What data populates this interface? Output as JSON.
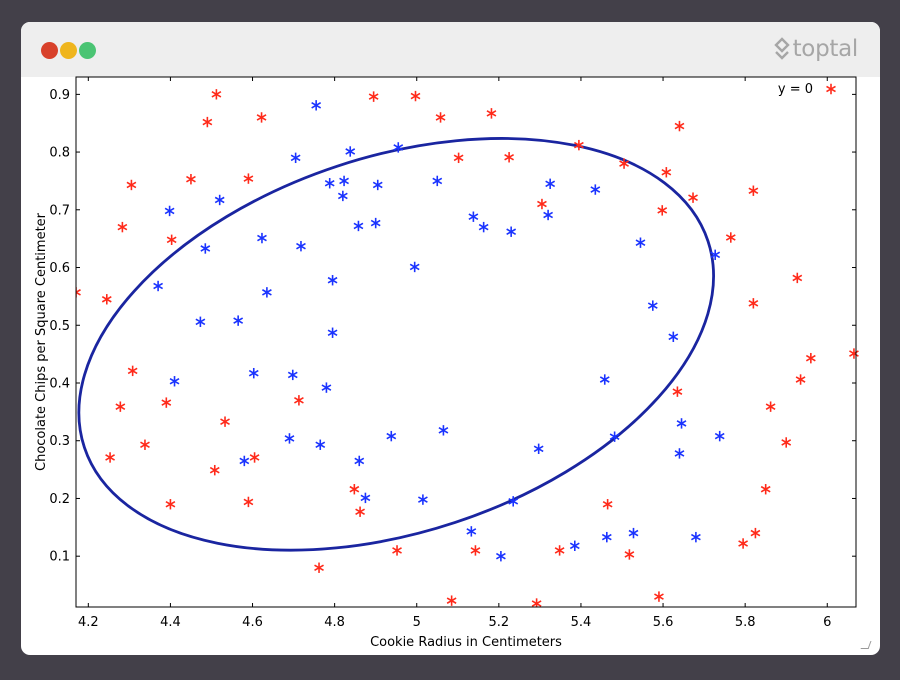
{
  "window": {
    "traffic_lights": [
      "#d8412b",
      "#efb51d",
      "#4ac473"
    ],
    "brand_label": "toptal",
    "brand_icon": "toptal-logo-icon"
  },
  "chart_data": {
    "type": "scatter",
    "title": "",
    "xlabel": "Cookie Radius in Centimeters",
    "ylabel": "Chocolate Chips per Square Centimeter",
    "xlim": [
      4.17,
      6.07
    ],
    "ylim": [
      0.012,
      0.93
    ],
    "xticks": [
      4.2,
      4.4,
      4.6,
      4.8,
      5,
      5.2,
      5.4,
      5.6,
      5.8,
      6
    ],
    "xtick_labels": [
      "4.2",
      "4.4",
      "4.6",
      "4.8",
      "5",
      "5.2",
      "5.4",
      "5.6",
      "5.8",
      "6"
    ],
    "yticks": [
      0.1,
      0.2,
      0.3,
      0.4,
      0.5,
      0.6,
      0.7,
      0.8,
      0.9
    ],
    "ytick_labels": [
      "0.1",
      "0.2",
      "0.3",
      "0.4",
      "0.5",
      "0.6",
      "0.7",
      "0.8",
      "0.9"
    ],
    "grid": false,
    "legend_position": "top-right",
    "marker": "asterisk",
    "legend_entries": [
      {
        "label": "y = 0",
        "color": "#ff2a1a"
      }
    ],
    "series": [
      {
        "name": "y = 0",
        "color": "#ff2a1a",
        "points": [
          [
            4.17,
            0.557
          ],
          [
            4.245,
            0.545
          ],
          [
            4.283,
            0.67
          ],
          [
            4.305,
            0.743
          ],
          [
            4.253,
            0.271
          ],
          [
            4.278,
            0.359
          ],
          [
            4.308,
            0.421
          ],
          [
            4.338,
            0.293
          ],
          [
            4.39,
            0.366
          ],
          [
            4.403,
            0.648
          ],
          [
            4.4,
            0.19
          ],
          [
            4.45,
            0.753
          ],
          [
            4.49,
            0.852
          ],
          [
            4.512,
            0.9
          ],
          [
            4.508,
            0.249
          ],
          [
            4.533,
            0.333
          ],
          [
            4.59,
            0.754
          ],
          [
            4.59,
            0.194
          ],
          [
            4.605,
            0.271
          ],
          [
            4.622,
            0.86
          ],
          [
            4.713,
            0.37
          ],
          [
            4.762,
            0.08
          ],
          [
            4.848,
            0.216
          ],
          [
            4.862,
            0.177
          ],
          [
            4.895,
            0.896
          ],
          [
            4.952,
            0.11
          ],
          [
            4.997,
            0.897
          ],
          [
            5.058,
            0.86
          ],
          [
            5.085,
            0.023
          ],
          [
            5.102,
            0.79
          ],
          [
            5.182,
            0.867
          ],
          [
            5.143,
            0.11
          ],
          [
            5.225,
            0.791
          ],
          [
            5.292,
            0.018
          ],
          [
            5.305,
            0.71
          ],
          [
            5.348,
            0.11
          ],
          [
            5.395,
            0.812
          ],
          [
            5.465,
            0.19
          ],
          [
            5.505,
            0.78
          ],
          [
            5.518,
            0.103
          ],
          [
            5.59,
            0.03
          ],
          [
            5.598,
            0.699
          ],
          [
            5.608,
            0.765
          ],
          [
            5.635,
            0.385
          ],
          [
            5.64,
            0.845
          ],
          [
            5.673,
            0.721
          ],
          [
            5.765,
            0.652
          ],
          [
            5.795,
            0.122
          ],
          [
            5.82,
            0.733
          ],
          [
            5.82,
            0.538
          ],
          [
            5.825,
            0.14
          ],
          [
            5.85,
            0.216
          ],
          [
            5.862,
            0.359
          ],
          [
            5.9,
            0.297
          ],
          [
            5.927,
            0.582
          ],
          [
            5.935,
            0.406
          ],
          [
            5.96,
            0.443
          ],
          [
            6.065,
            0.451
          ]
        ]
      },
      {
        "name": "",
        "color": "#1a33ff",
        "points": [
          [
            4.398,
            0.698
          ],
          [
            4.37,
            0.568
          ],
          [
            4.41,
            0.403
          ],
          [
            4.473,
            0.506
          ],
          [
            4.485,
            0.633
          ],
          [
            4.52,
            0.717
          ],
          [
            4.565,
            0.508
          ],
          [
            4.58,
            0.265
          ],
          [
            4.603,
            0.417
          ],
          [
            4.623,
            0.651
          ],
          [
            4.635,
            0.557
          ],
          [
            4.69,
            0.304
          ],
          [
            4.698,
            0.414
          ],
          [
            4.705,
            0.79
          ],
          [
            4.718,
            0.637
          ],
          [
            4.755,
            0.881
          ],
          [
            4.765,
            0.293
          ],
          [
            4.78,
            0.392
          ],
          [
            4.788,
            0.746
          ],
          [
            4.795,
            0.578
          ],
          [
            4.795,
            0.487
          ],
          [
            4.82,
            0.724
          ],
          [
            4.823,
            0.75
          ],
          [
            4.838,
            0.801
          ],
          [
            4.858,
            0.672
          ],
          [
            4.86,
            0.265
          ],
          [
            4.875,
            0.201
          ],
          [
            4.9,
            0.677
          ],
          [
            4.905,
            0.743
          ],
          [
            4.938,
            0.308
          ],
          [
            4.955,
            0.808
          ],
          [
            4.995,
            0.601
          ],
          [
            5.015,
            0.198
          ],
          [
            5.05,
            0.75
          ],
          [
            5.065,
            0.318
          ],
          [
            5.133,
            0.143
          ],
          [
            5.138,
            0.688
          ],
          [
            5.163,
            0.67
          ],
          [
            5.205,
            0.1
          ],
          [
            5.23,
            0.662
          ],
          [
            5.235,
            0.195
          ],
          [
            5.297,
            0.286
          ],
          [
            5.32,
            0.691
          ],
          [
            5.325,
            0.745
          ],
          [
            5.385,
            0.118
          ],
          [
            5.435,
            0.735
          ],
          [
            5.458,
            0.406
          ],
          [
            5.463,
            0.133
          ],
          [
            5.482,
            0.307
          ],
          [
            5.528,
            0.14
          ],
          [
            5.545,
            0.643
          ],
          [
            5.575,
            0.534
          ],
          [
            5.625,
            0.48
          ],
          [
            5.64,
            0.278
          ],
          [
            5.645,
            0.33
          ],
          [
            5.68,
            0.133
          ],
          [
            5.727,
            0.622
          ],
          [
            5.738,
            0.308
          ]
        ]
      }
    ],
    "decision_boundary": {
      "shape": "ellipse",
      "color": "#1a25a0",
      "center": [
        4.95,
        0.467
      ],
      "semi_axis_x": 0.8,
      "semi_axis_y": 0.325,
      "rotation_deg": -18.3
    }
  }
}
